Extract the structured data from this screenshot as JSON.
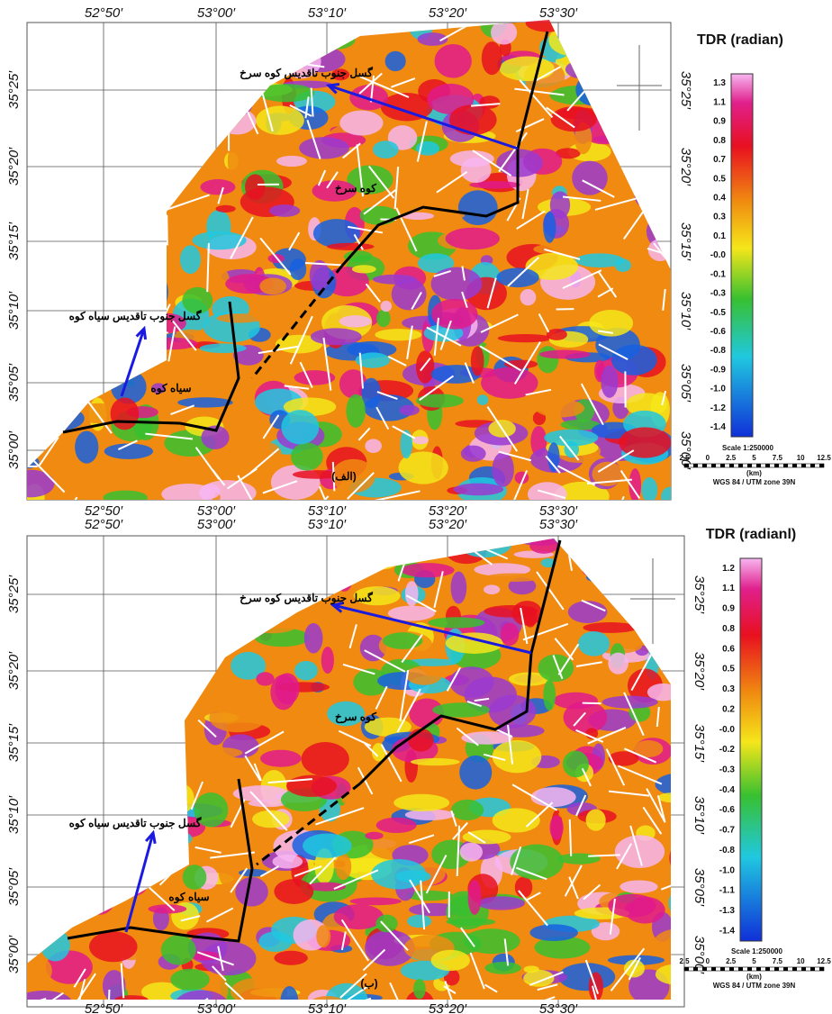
{
  "panels": [
    {
      "top_lon_labels": [
        "52°50′",
        "53°00′",
        "53°10′",
        "53°20′",
        "53°30′"
      ],
      "bottom_lon_labels": [
        "52°50′",
        "53°00′",
        "53°10′",
        "53°20′",
        "53°30′"
      ],
      "left_lat_labels": [
        "35°25′",
        "35°20′",
        "35°15′",
        "35°10′",
        "35°05′",
        "35°00′"
      ],
      "right_lat_labels": [
        "35°25′",
        "35°20′",
        "35°15′",
        "35°10′",
        "35°05′",
        "35°00′"
      ],
      "legend_title": "TDR (radian)",
      "legend_labels": [
        "1.3",
        "1.1",
        "0.9",
        "0.8",
        "0.7",
        "0.5",
        "0.4",
        "0.3",
        "0.1",
        "-0.0",
        "-0.1",
        "-0.3",
        "-0.5",
        "-0.6",
        "-0.8",
        "-0.9",
        "-1.0",
        "-1.2",
        "-1.4"
      ],
      "scale": "Scale 1:250000",
      "scale_bar_labels": [
        "2.5",
        "0",
        "2.5",
        "5",
        "7.5",
        "10",
        "12.5"
      ],
      "scale_unit": "(km)",
      "projection": "WGS 84 / UTM zone 39N",
      "annotations": [
        "گسل جنوب تاقدیس کوه سرخ",
        "کوه سرخ",
        "گسل جنوب تاقدیس سیاه کوه",
        "سیاه کوه"
      ],
      "panel_label": "(الف)"
    },
    {
      "top_lon_labels": [
        "52°50′",
        "53°00′",
        "53°10′",
        "53°20′",
        "53°30′"
      ],
      "bottom_lon_labels": [
        "52°50′",
        "53°00′",
        "53°10′",
        "53°20′",
        "53°30′"
      ],
      "left_lat_labels": [
        "35°25′",
        "35°20′",
        "35°15′",
        "35°10′",
        "35°05′",
        "35°00′"
      ],
      "right_lat_labels": [
        "35°25′",
        "35°20′",
        "35°15′",
        "35°10′",
        "35°05′",
        "35°00′"
      ],
      "legend_title": "TDR (radianl)",
      "legend_labels": [
        "1.2",
        "1.1",
        "0.9",
        "0.8",
        "0.6",
        "0.5",
        "0.3",
        "0.2",
        "-0.0",
        "-0.2",
        "-0.3",
        "-0.4",
        "-0.6",
        "-0.7",
        "-0.8",
        "-1.0",
        "-1.1",
        "-1.3",
        "-1.4"
      ],
      "scale": "Scale 1:250000",
      "scale_bar_labels": [
        "2.5",
        "0",
        "2.5",
        "5",
        "7.5",
        "10",
        "12.5"
      ],
      "scale_unit": "(km)",
      "projection": "WGS 84 / UTM zone 39N",
      "annotations": [
        "گسل جنوب تاقدیس کوه سرخ",
        "کوه سرخ",
        "گسل جنوب تاقدیس سیاه کوه",
        "سیاه کوه"
      ],
      "panel_label": "(ب)"
    }
  ]
}
